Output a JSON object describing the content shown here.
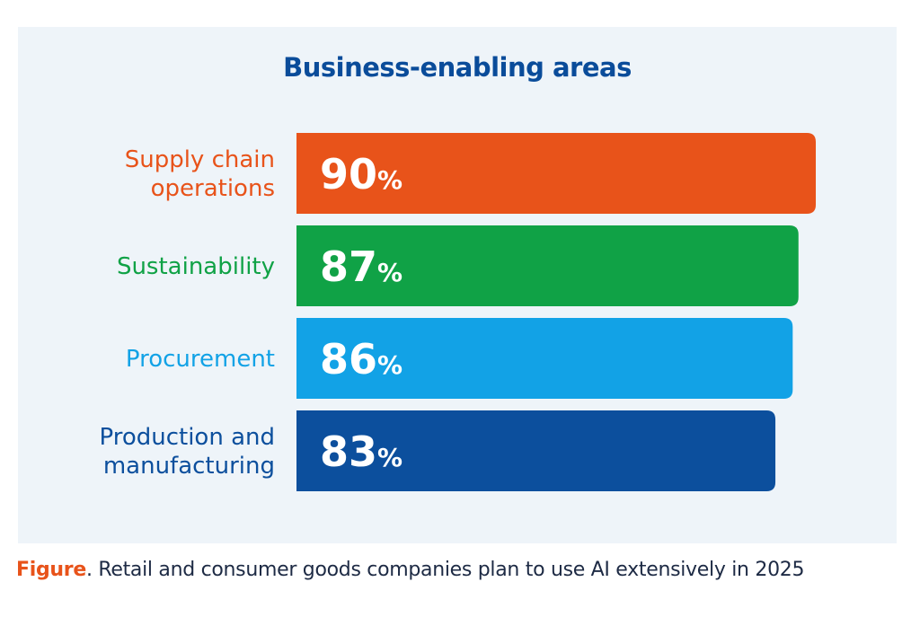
{
  "chart_data": {
    "type": "bar",
    "orientation": "horizontal",
    "title": "Business-enabling areas",
    "categories": [
      [
        "Supply chain",
        "operations"
      ],
      [
        "Sustainability"
      ],
      [
        "Procurement"
      ],
      [
        "Production and",
        "manufacturing"
      ]
    ],
    "values": [
      90,
      87,
      86,
      83
    ],
    "value_labels": [
      "90",
      "87",
      "86",
      "83"
    ],
    "value_suffix": "%",
    "colors": [
      "#e8531a",
      "#10a246",
      "#12a2e6",
      "#0c4f9d"
    ],
    "grid": false
  },
  "caption": {
    "prefix": "Figure",
    "text": ". Retail and consumer goods companies plan to use AI extensively in 2025"
  }
}
